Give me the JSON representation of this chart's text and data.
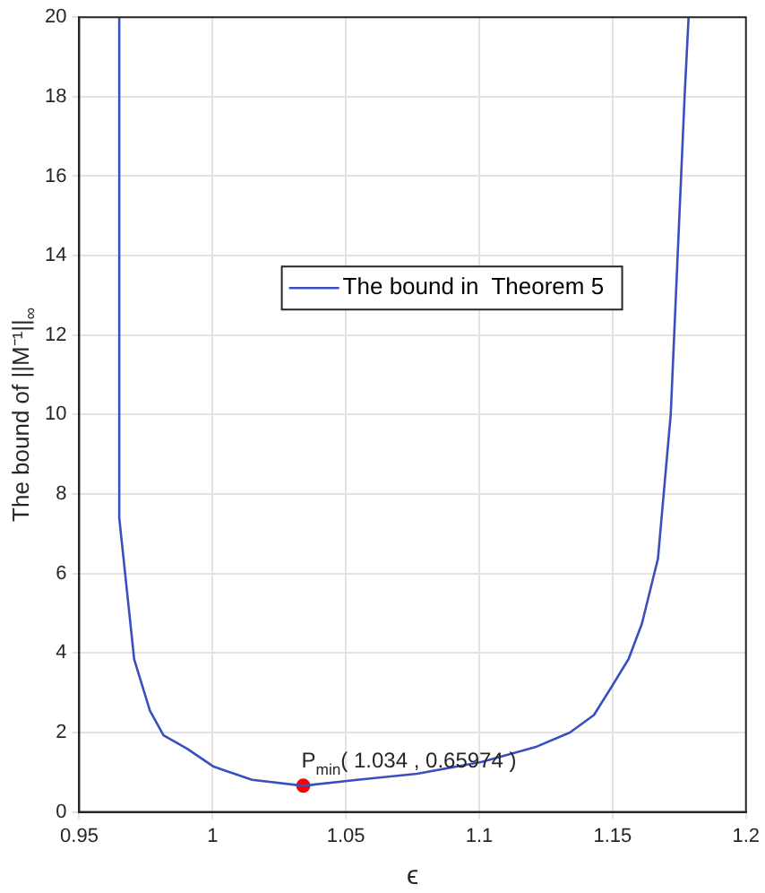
{
  "chart_data": {
    "type": "line",
    "xlabel": "ϵ",
    "ylabel": "The bound of ||M⁻¹||$_{∞}$",
    "xlim": [
      0.95,
      1.2
    ],
    "xticks": [
      0.95,
      1,
      1.05,
      1.1,
      1.15,
      1.2
    ],
    "ylim": [
      0,
      20
    ],
    "yticks": [
      0,
      2,
      4,
      6,
      8,
      10,
      12,
      14,
      16,
      18,
      20
    ],
    "grid": true,
    "legend": "top",
    "marker": "none",
    "line_style": "solid",
    "series": [
      {
        "name": "The bound in  Theorem 5",
        "color": "#3a4fbf",
        "x": [
          0.965,
          0.965,
          0.9706,
          0.9765,
          0.9816,
          0.9905,
          1.0004,
          1.0148,
          1.034,
          1.0543,
          1.0767,
          1.101,
          1.121,
          1.134,
          1.143,
          1.15,
          1.156,
          1.161,
          1.167,
          1.1718,
          1.177,
          1.1785
        ],
        "values": [
          20,
          7.4,
          3.84,
          2.55,
          1.93,
          1.59,
          1.14,
          0.81,
          0.66,
          0.81,
          0.96,
          1.26,
          1.63,
          2.0,
          2.44,
          3.19,
          3.85,
          4.74,
          6.37,
          10,
          18,
          20
        ]
      },
      {
        "type": "scatter",
        "marker": "circle",
        "color": "#ff0000",
        "x": [
          1.034
        ],
        "values": [
          0.65974
        ]
      }
    ],
    "annotations": [
      {
        "text": "P$_{min}$( 1.034 , 0.65974 )",
        "x": 1.034,
        "y": 0.65974
      }
    ]
  }
}
